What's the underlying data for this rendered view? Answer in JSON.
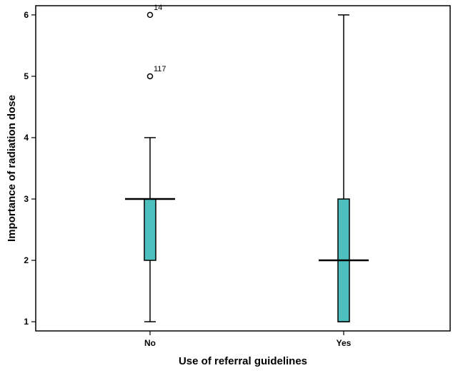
{
  "chart_data": {
    "type": "boxplot",
    "xlabel": "Use of referral guidelines",
    "ylabel": "Importance of radiation dose",
    "categories": [
      "No",
      "Yes"
    ],
    "ylim": [
      0.85,
      6.15
    ],
    "yticks": [
      1,
      2,
      3,
      4,
      5,
      6
    ],
    "grid": false,
    "box_color": "#4dbfbf",
    "boxes": [
      {
        "category": "No",
        "whisker_low": 1,
        "q1": 2,
        "median": 3,
        "q3": 3,
        "whisker_high": 4,
        "outliers": [
          {
            "value": 6,
            "label": "14"
          },
          {
            "value": 5,
            "label": "117"
          }
        ]
      },
      {
        "category": "Yes",
        "whisker_low": 1,
        "q1": 1,
        "median": 2,
        "q3": 3,
        "whisker_high": 6,
        "outliers": []
      }
    ]
  }
}
